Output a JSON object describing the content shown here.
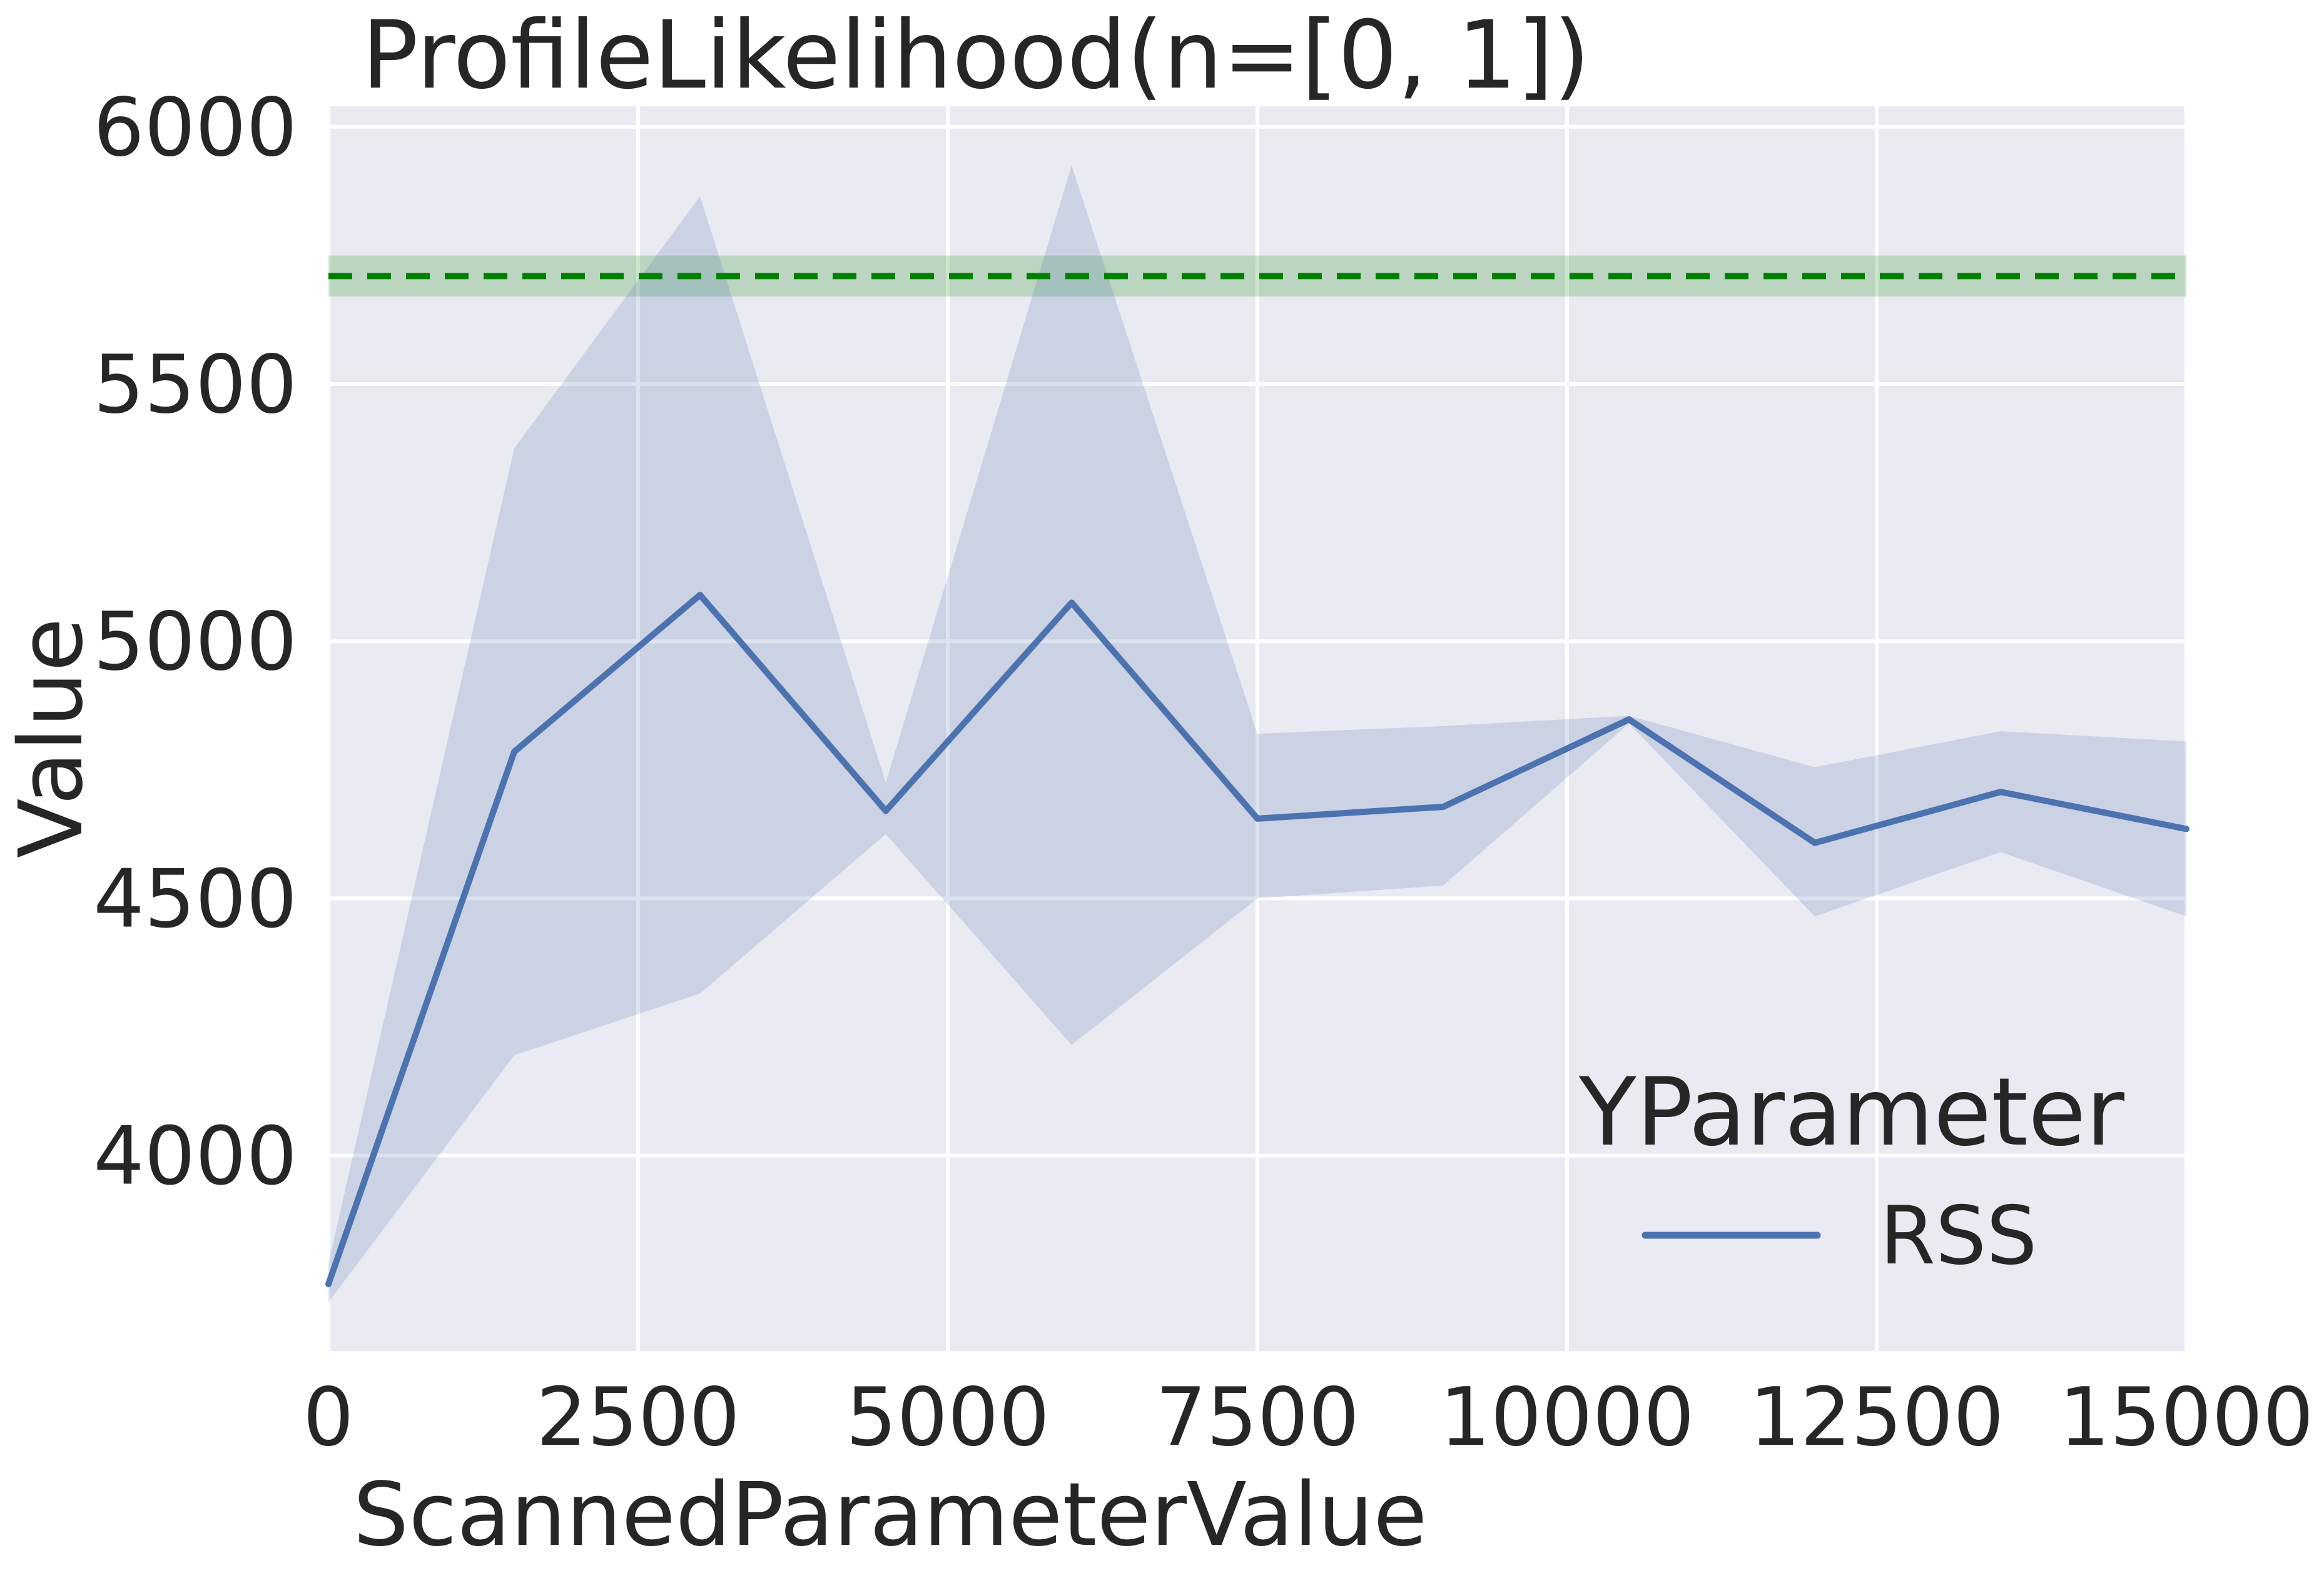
{
  "chart_data": {
    "type": "line",
    "title": "ProfileLikelihood(n=[0, 1])",
    "xlabel": "ScannedParameterValue",
    "ylabel": "Value",
    "xlim": [
      0,
      15000
    ],
    "ylim": [
      3620,
      6040
    ],
    "grid": true,
    "x_ticks": [
      "0",
      "2500",
      "5000",
      "7500",
      "10000",
      "12500",
      "15000"
    ],
    "y_ticks": [
      "4000",
      "4500",
      "5000",
      "5500",
      "6000"
    ],
    "legend": {
      "title": "YParameter",
      "placement": "bottom-right"
    },
    "series": [
      {
        "name": "RSS",
        "color": "#4c72b0",
        "x": [
          0,
          1500,
          3000,
          4500,
          6000,
          7500,
          9000,
          10500,
          12000,
          13500,
          15000
        ],
        "y": [
          3750,
          4785,
          5090,
          4670,
          5075,
          4655,
          4678,
          4848,
          4608,
          4707,
          4635
        ],
        "ci_upper": [
          3790,
          5375,
          5865,
          4725,
          5925,
          4820,
          4835,
          4855,
          4755,
          4825,
          4805
        ],
        "ci_lower": [
          3715,
          4195,
          4315,
          4625,
          4215,
          4500,
          4525,
          4840,
          4465,
          4590,
          4465
        ]
      }
    ],
    "reference_line": {
      "y": 5710,
      "band": [
        5670,
        5750
      ],
      "style": "dashed",
      "color": "#008000"
    }
  },
  "colors": {
    "plot_background": "#eaeaf2",
    "grid": "#ffffff",
    "series": "#4c72b0",
    "reference": "#008000"
  }
}
